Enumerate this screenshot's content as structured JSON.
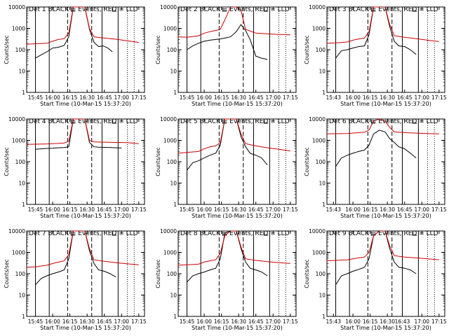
{
  "figure": {
    "xlabel": "Start Time (10-Mar-15 15:37:20)",
    "ylabel": "Counts/sec"
  },
  "chart_data": [
    {
      "type": "line",
      "title": "Det 1  BLACK = Events, RED = LLD",
      "xlabel": "Start Time (10-Mar-15 15:37:20)",
      "ylabel": "Counts/sec",
      "yscale": "log",
      "ylim": [
        1,
        10000
      ],
      "xlim": [
        "15:37:20",
        "17:20"
      ],
      "x_tick_labels": [
        "15:45",
        "16:00",
        "16:15",
        "16:30",
        "16:45",
        "17:00",
        "17:15"
      ],
      "y_tick_labels": [
        "1",
        "10",
        "100",
        "1000",
        "10000"
      ],
      "series": [
        {
          "color": "#000000",
          "x": [
            "15:45",
            "15:48",
            "15:55",
            "16:00",
            "16:05",
            "16:10",
            "16:14",
            "16:18",
            "16:23",
            "16:28",
            "16:32",
            "16:36",
            "16:40",
            "16:44",
            "16:48",
            "16:52"
          ],
          "values": [
            40,
            50,
            80,
            120,
            130,
            160,
            400,
            10000,
            10000,
            10000,
            900,
            220,
            140,
            150,
            120,
            80
          ]
        },
        {
          "color": "#cc0000",
          "x": [
            "15:37",
            "15:45",
            "15:55",
            "16:00",
            "16:05",
            "16:10",
            "16:14",
            "16:18",
            "16:23",
            "16:28",
            "16:32",
            "16:36",
            "16:45",
            "16:55",
            "17:05",
            "17:15"
          ],
          "values": [
            180,
            190,
            200,
            250,
            300,
            330,
            600,
            10000,
            10000,
            10000,
            1000,
            400,
            350,
            310,
            260,
            220
          ]
        }
      ]
    },
    {
      "type": "line",
      "title": "Det 2  BLACK = Events, RED = LLD",
      "xlabel": "Start Time (10-Mar-15 15:37:20)",
      "ylabel": "Counts/sec",
      "yscale": "log",
      "ylim": [
        1,
        10000
      ],
      "xlim": [
        "15:37:20",
        "17:20"
      ],
      "x_tick_labels": [
        "15:45",
        "16:00",
        "16:15",
        "16:30",
        "16:45",
        "17:00",
        "17:15"
      ],
      "y_tick_labels": [
        "1",
        "10",
        "100",
        "1000",
        "10000"
      ],
      "series": [
        {
          "color": "#000000",
          "x": [
            "15:45",
            "15:50",
            "15:55",
            "16:00",
            "16:05",
            "16:10",
            "16:14",
            "16:18",
            "16:23",
            "16:28",
            "16:32",
            "16:36",
            "16:40",
            "16:45",
            "16:50",
            "16:55"
          ],
          "values": [
            100,
            150,
            200,
            250,
            280,
            300,
            320,
            350,
            400,
            700,
            1500,
            800,
            300,
            50,
            40,
            35
          ]
        },
        {
          "color": "#cc0000",
          "x": [
            "15:37",
            "15:45",
            "15:55",
            "16:00",
            "16:05",
            "16:10",
            "16:14",
            "16:18",
            "16:23",
            "16:28",
            "16:32",
            "16:36",
            "16:45",
            "16:55",
            "17:05",
            "17:15"
          ],
          "values": [
            400,
            380,
            450,
            600,
            700,
            800,
            900,
            2500,
            10000,
            10000,
            7000,
            900,
            600,
            550,
            520,
            500
          ]
        }
      ]
    },
    {
      "type": "line",
      "title": "Det 3  BLACK = Events, RED = LLD",
      "xlabel": "Start Time (10-Mar-15 15:37:20)",
      "ylabel": "Counts/sec",
      "yscale": "log",
      "ylim": [
        1,
        10000
      ],
      "xlim": [
        "15:37:20",
        "17:20"
      ],
      "x_tick_labels": [
        "15:43",
        "16:00",
        "16:15",
        "16:30",
        "16:45",
        "17:00",
        "17:15"
      ],
      "y_tick_labels": [
        "1",
        "10",
        "100",
        "1000",
        "10000"
      ],
      "series": [
        {
          "color": "#000000",
          "x": [
            "15:45",
            "15:50",
            "15:55",
            "16:00",
            "16:05",
            "16:10",
            "16:14",
            "16:18",
            "16:23",
            "16:28",
            "16:32",
            "16:36",
            "16:40",
            "16:45",
            "16:50",
            "16:55"
          ],
          "values": [
            40,
            90,
            100,
            120,
            140,
            150,
            500,
            10000,
            10000,
            10000,
            1200,
            250,
            150,
            140,
            100,
            60
          ]
        },
        {
          "color": "#cc0000",
          "x": [
            "15:37",
            "15:45",
            "15:55",
            "16:00",
            "16:05",
            "16:10",
            "16:14",
            "16:18",
            "16:23",
            "16:28",
            "16:32",
            "16:36",
            "16:45",
            "16:55",
            "17:05",
            "17:15"
          ],
          "values": [
            200,
            210,
            230,
            280,
            320,
            350,
            700,
            10000,
            10000,
            10000,
            1500,
            450,
            380,
            330,
            280,
            240
          ]
        }
      ]
    },
    {
      "type": "line",
      "title": "Det 4  BLACK = Events, RED = LLD",
      "xlabel": "Start Time (10-Mar-15 15:37:20)",
      "ylabel": "Counts/sec",
      "yscale": "log",
      "ylim": [
        1,
        10000
      ],
      "xlim": [
        "15:37:20",
        "17:20"
      ],
      "x_tick_labels": [
        "15:45",
        "16:00",
        "16:15",
        "16:30",
        "16:45",
        "17:00",
        "17:15"
      ],
      "y_tick_labels": [
        "1",
        "10",
        "100",
        "1000",
        "10000"
      ],
      "series": [
        {
          "color": "#000000",
          "x": [
            "15:45",
            "15:50",
            "15:55",
            "16:00",
            "16:05",
            "16:10",
            "16:14",
            "16:18",
            "16:23",
            "16:28",
            "16:32",
            "16:36",
            "16:40",
            "16:45",
            "16:50",
            "16:55",
            "17:00"
          ],
          "values": [
            380,
            400,
            420,
            430,
            450,
            460,
            500,
            10000,
            10000,
            10000,
            800,
            500,
            480,
            470,
            460,
            450,
            440
          ]
        },
        {
          "color": "#cc0000",
          "x": [
            "15:37",
            "15:45",
            "15:55",
            "16:00",
            "16:05",
            "16:10",
            "16:14",
            "16:18",
            "16:23",
            "16:28",
            "16:32",
            "16:36",
            "16:45",
            "16:55",
            "17:05",
            "17:15"
          ],
          "values": [
            650,
            660,
            680,
            700,
            720,
            750,
            900,
            10000,
            10000,
            10000,
            1000,
            850,
            820,
            800,
            780,
            700
          ]
        }
      ]
    },
    {
      "type": "line",
      "title": "Det 5  BLACK = Events, RED = LLD",
      "xlabel": "Start Time (10-Mar-15 15:37:20)",
      "ylabel": "Counts/sec",
      "yscale": "log",
      "ylim": [
        1,
        10000
      ],
      "xlim": [
        "15:37:20",
        "17:20"
      ],
      "x_tick_labels": [
        "15:45",
        "16:00",
        "16:15",
        "16:30",
        "16:45",
        "17:00",
        "17:15"
      ],
      "y_tick_labels": [
        "1",
        "10",
        "100",
        "1000",
        "10000"
      ],
      "series": [
        {
          "color": "#000000",
          "x": [
            "15:45",
            "15:50",
            "15:55",
            "16:00",
            "16:05",
            "16:10",
            "16:14",
            "16:18",
            "16:23",
            "16:28",
            "16:32",
            "16:36",
            "16:40",
            "16:45",
            "16:50",
            "16:55"
          ],
          "values": [
            40,
            90,
            110,
            150,
            200,
            250,
            600,
            10000,
            10000,
            10000,
            1500,
            500,
            250,
            200,
            150,
            70
          ]
        },
        {
          "color": "#cc0000",
          "x": [
            "15:37",
            "15:45",
            "15:55",
            "16:00",
            "16:05",
            "16:10",
            "16:14",
            "16:18",
            "16:23",
            "16:28",
            "16:32",
            "16:36",
            "16:45",
            "16:55",
            "17:05",
            "17:15"
          ],
          "values": [
            250,
            270,
            300,
            400,
            500,
            550,
            800,
            10000,
            10000,
            10000,
            2000,
            700,
            550,
            450,
            380,
            320
          ]
        }
      ]
    },
    {
      "type": "line",
      "title": "Det 6  BLACK = Events, RED = LLD",
      "xlabel": "Start Time (10-Mar-15 15:37:20)",
      "ylabel": "Counts/sec",
      "yscale": "log",
      "ylim": [
        1,
        10000
      ],
      "xlim": [
        "15:37:20",
        "17:20"
      ],
      "x_tick_labels": [
        "15:43",
        "16:00",
        "16:15",
        "16:30",
        "16:45",
        "17:00",
        "17:15"
      ],
      "y_tick_labels": [
        "1",
        "10",
        "100",
        "1000",
        "10000"
      ],
      "series": [
        {
          "color": "#000000",
          "x": [
            "15:45",
            "15:50",
            "15:55",
            "16:00",
            "16:05",
            "16:10",
            "16:14",
            "16:18",
            "16:23",
            "16:28",
            "16:32",
            "16:36",
            "16:40",
            "16:45",
            "16:50",
            "16:55"
          ],
          "values": [
            60,
            150,
            200,
            250,
            300,
            350,
            600,
            2000,
            3000,
            2500,
            1200,
            800,
            500,
            400,
            250,
            150
          ]
        },
        {
          "color": "#cc0000",
          "x": [
            "15:37",
            "15:45",
            "15:55",
            "16:00",
            "16:05",
            "16:10",
            "16:14",
            "16:18",
            "16:23",
            "16:28",
            "16:32",
            "16:36",
            "16:45",
            "16:55",
            "17:05",
            "17:15"
          ],
          "values": [
            2000,
            2050,
            2100,
            2200,
            2300,
            2400,
            3000,
            8000,
            10000,
            8000,
            4000,
            2500,
            2300,
            2200,
            2100,
            2000
          ]
        }
      ]
    },
    {
      "type": "line",
      "title": "Det 7  BLACK = Events, RED = LLD",
      "xlabel": "Start Time (10-Mar-15 15:37:20)",
      "ylabel": "Counts/sec",
      "yscale": "log",
      "ylim": [
        1,
        10000
      ],
      "xlim": [
        "15:37:20",
        "17:20"
      ],
      "x_tick_labels": [
        "15:45",
        "16:00",
        "16:15",
        "16:30",
        "16:45",
        "17:00",
        "17:15"
      ],
      "y_tick_labels": [
        "1",
        "10",
        "100",
        "1000",
        "10000"
      ],
      "series": [
        {
          "color": "#000000",
          "x": [
            "15:45",
            "15:50",
            "15:55",
            "16:00",
            "16:05",
            "16:10",
            "16:14",
            "16:18",
            "16:23",
            "16:28",
            "16:32",
            "16:36",
            "16:40",
            "16:45",
            "16:50",
            "16:55"
          ],
          "values": [
            30,
            60,
            80,
            100,
            120,
            150,
            500,
            10000,
            10000,
            10000,
            1200,
            300,
            150,
            130,
            100,
            70
          ]
        },
        {
          "color": "#cc0000",
          "x": [
            "15:37",
            "15:45",
            "15:55",
            "16:00",
            "16:05",
            "16:10",
            "16:14",
            "16:18",
            "16:23",
            "16:28",
            "16:32",
            "16:36",
            "16:45",
            "16:55",
            "17:05",
            "17:15"
          ],
          "values": [
            200,
            210,
            250,
            300,
            350,
            400,
            800,
            10000,
            10000,
            10000,
            1500,
            450,
            380,
            330,
            290,
            260
          ]
        }
      ]
    },
    {
      "type": "line",
      "title": "Det 8  BLACK = Events, RED = LLD",
      "xlabel": "Start Time (10-Mar-15 15:37:20)",
      "ylabel": "Counts/sec",
      "yscale": "log",
      "ylim": [
        1,
        10000
      ],
      "xlim": [
        "15:37:20",
        "17:20"
      ],
      "x_tick_labels": [
        "15:45",
        "16:00",
        "16:15",
        "16:30",
        "16:45",
        "17:00",
        "17:15"
      ],
      "y_tick_labels": [
        "1",
        "10",
        "100",
        "1000",
        "10000"
      ],
      "series": [
        {
          "color": "#000000",
          "x": [
            "15:45",
            "15:50",
            "15:55",
            "16:00",
            "16:05",
            "16:10",
            "16:14",
            "16:18",
            "16:23",
            "16:28",
            "16:32",
            "16:36",
            "16:40",
            "16:45",
            "16:50",
            "16:55"
          ],
          "values": [
            40,
            80,
            100,
            120,
            150,
            180,
            500,
            8000,
            10000,
            10000,
            1500,
            350,
            180,
            150,
            120,
            80
          ]
        },
        {
          "color": "#cc0000",
          "x": [
            "15:37",
            "15:45",
            "15:55",
            "16:00",
            "16:05",
            "16:10",
            "16:14",
            "16:18",
            "16:23",
            "16:28",
            "16:32",
            "16:36",
            "16:45",
            "16:55",
            "17:05",
            "17:15"
          ],
          "values": [
            250,
            260,
            280,
            350,
            400,
            450,
            900,
            6000,
            10000,
            10000,
            1800,
            500,
            420,
            370,
            330,
            300
          ]
        }
      ]
    },
    {
      "type": "line",
      "title": "Det 9  BLACK = Events, RED = LLD",
      "xlabel": "Start Time (10-Mar-15 15:37:20)",
      "ylabel": "Counts/sec",
      "yscale": "log",
      "ylim": [
        1,
        10000
      ],
      "xlim": [
        "15:37:20",
        "17:20"
      ],
      "x_tick_labels": [
        "15:43",
        "16:00",
        "16:15",
        "16:30",
        "16:43",
        "17:00",
        "17:15"
      ],
      "y_tick_labels": [
        "1",
        "10",
        "100",
        "1000",
        "10000"
      ],
      "series": [
        {
          "color": "#000000",
          "x": [
            "15:45",
            "15:50",
            "15:55",
            "16:00",
            "16:05",
            "16:10",
            "16:14",
            "16:18",
            "16:23",
            "16:28",
            "16:32",
            "16:36",
            "16:40",
            "16:45",
            "16:50",
            "16:55"
          ],
          "values": [
            30,
            80,
            100,
            130,
            160,
            200,
            500,
            6000,
            10000,
            10000,
            1500,
            350,
            200,
            180,
            150,
            100
          ]
        },
        {
          "color": "#cc0000",
          "x": [
            "15:37",
            "15:45",
            "15:55",
            "16:00",
            "16:05",
            "16:10",
            "16:14",
            "16:18",
            "16:23",
            "16:28",
            "16:32",
            "16:36",
            "16:45",
            "16:55",
            "17:05",
            "17:15"
          ],
          "values": [
            400,
            420,
            450,
            500,
            550,
            600,
            1000,
            6000,
            10000,
            10000,
            2000,
            700,
            600,
            550,
            500,
            450
          ]
        }
      ]
    }
  ]
}
